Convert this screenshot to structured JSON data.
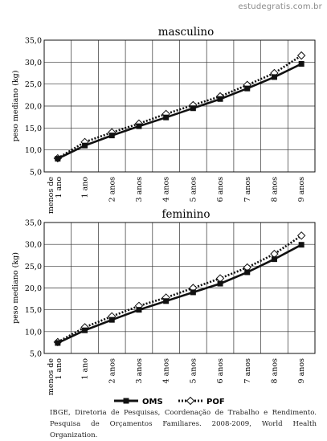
{
  "watermark": "estudegratis.com.br",
  "chart_data": [
    {
      "type": "line",
      "title": "masculino",
      "ylabel": "peso mediano (kg)",
      "xlabel": "",
      "categories": [
        "menos de 1 ano",
        "1 ano",
        "2 anos",
        "3 anos",
        "4 anos",
        "5 anos",
        "6 anos",
        "7 anos",
        "8 anos",
        "9 anos"
      ],
      "yticks": [
        "5,0",
        "10,0",
        "15,0",
        "20,0",
        "25,0",
        "30,0",
        "35,0"
      ],
      "ylim": [
        5,
        35
      ],
      "grid": true,
      "series": [
        {
          "name": "OMS",
          "marker": "square",
          "style": "solid",
          "values": [
            8.0,
            11.0,
            13.3,
            15.4,
            17.4,
            19.5,
            21.6,
            24.0,
            26.6,
            29.6
          ]
        },
        {
          "name": "POF",
          "marker": "diamond",
          "style": "dotted",
          "values": [
            8.1,
            11.8,
            14.0,
            16.0,
            18.2,
            20.2,
            22.2,
            24.8,
            27.5,
            31.5
          ]
        }
      ]
    },
    {
      "type": "line",
      "title": "feminino",
      "ylabel": "peso mediano (kg)",
      "xlabel": "",
      "categories": [
        "menos de 1 ano",
        "1 ano",
        "2 anos",
        "3 anos",
        "4 anos",
        "5 anos",
        "6 anos",
        "7 anos",
        "8 anos",
        "9 anos"
      ],
      "yticks": [
        "5,0",
        "10,0",
        "15,0",
        "20,0",
        "25,0",
        "30,0",
        "35,0"
      ],
      "ylim": [
        5,
        35
      ],
      "grid": true,
      "series": [
        {
          "name": "OMS",
          "marker": "square",
          "style": "solid",
          "values": [
            7.4,
            10.3,
            12.7,
            15.0,
            17.0,
            19.0,
            21.0,
            23.6,
            26.6,
            29.9
          ]
        },
        {
          "name": "POF",
          "marker": "diamond",
          "style": "dotted",
          "values": [
            7.6,
            11.0,
            13.5,
            15.9,
            17.8,
            20.0,
            22.2,
            24.7,
            27.8,
            32.0
          ]
        }
      ]
    }
  ],
  "legend": {
    "oms": "OMS",
    "pof": "POF"
  },
  "source": "IBGE, Diretoria de Pesquisas, Coordenação de Trabalho e Rendimento. Pesquisa de Orçamentos Familiares. 2008-2009, World Health Organization."
}
